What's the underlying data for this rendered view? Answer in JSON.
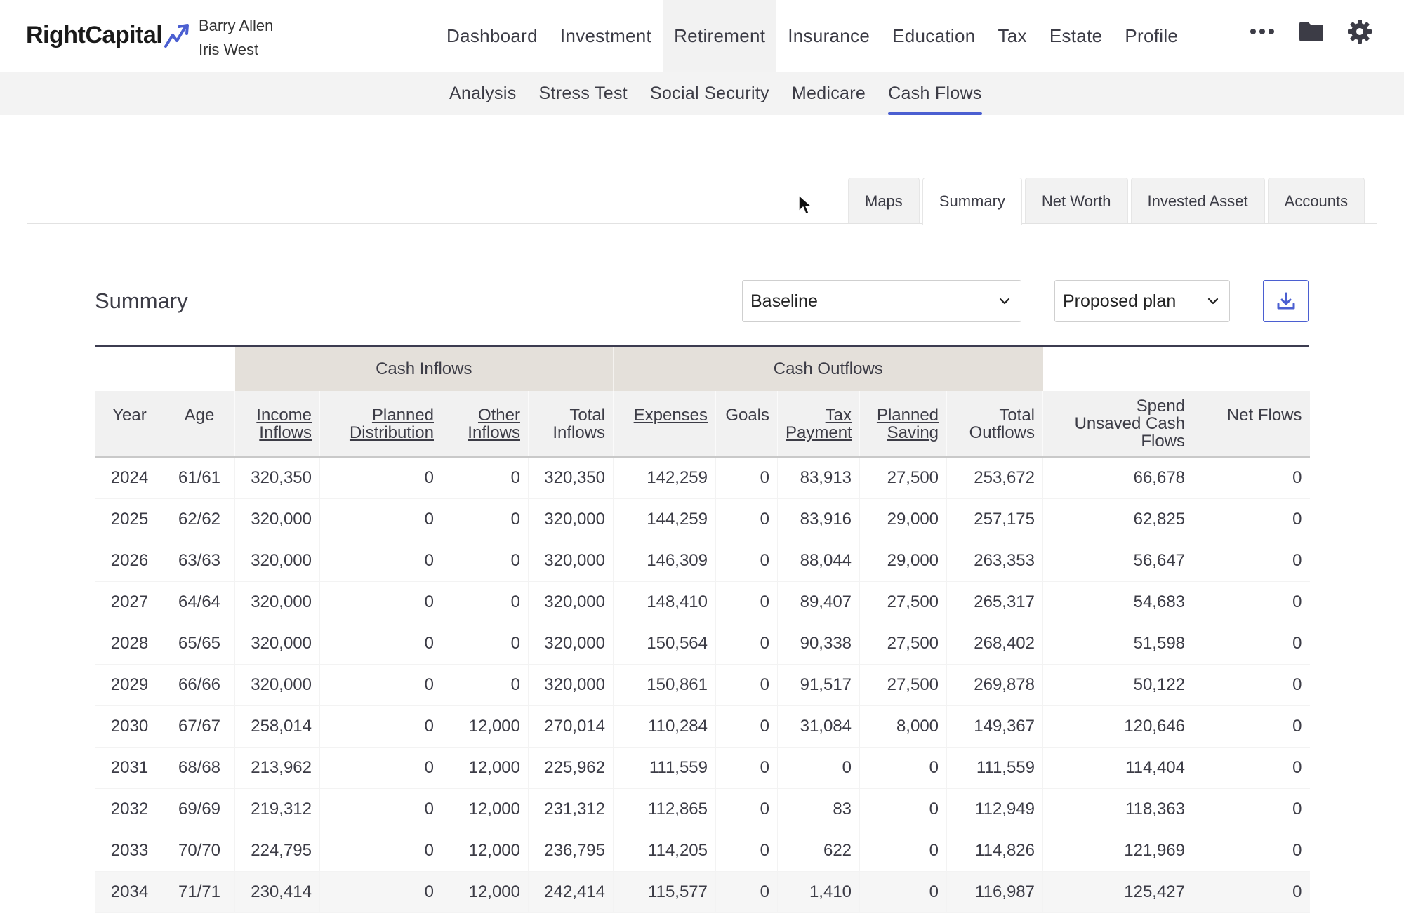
{
  "brand": {
    "name": "RightCapital",
    "accent": "#4b5fd1"
  },
  "client": {
    "line1": "Barry Allen",
    "line2": "Iris West"
  },
  "main_nav": [
    {
      "label": "Dashboard",
      "active": false
    },
    {
      "label": "Investment",
      "active": false
    },
    {
      "label": "Retirement",
      "active": true
    },
    {
      "label": "Insurance",
      "active": false
    },
    {
      "label": "Education",
      "active": false
    },
    {
      "label": "Tax",
      "active": false
    },
    {
      "label": "Estate",
      "active": false
    },
    {
      "label": "Profile",
      "active": false
    }
  ],
  "nav_icons": [
    "more-icon",
    "folder-icon",
    "gear-icon"
  ],
  "sub_nav": [
    {
      "label": "Analysis",
      "active": false
    },
    {
      "label": "Stress Test",
      "active": false
    },
    {
      "label": "Social Security",
      "active": false
    },
    {
      "label": "Medicare",
      "active": false
    },
    {
      "label": "Cash Flows",
      "active": true
    }
  ],
  "view_tabs": [
    {
      "label": "Maps",
      "active": false
    },
    {
      "label": "Summary",
      "active": true
    },
    {
      "label": "Net Worth",
      "active": false
    },
    {
      "label": "Invested Asset",
      "active": false
    },
    {
      "label": "Accounts",
      "active": false
    }
  ],
  "panel": {
    "title": "Summary",
    "scenario_select": "Baseline",
    "plan_select": "Proposed plan",
    "download_icon": "download-icon"
  },
  "table": {
    "groups": {
      "inflows": "Cash Inflows",
      "outflows": "Cash Outflows"
    },
    "columns": [
      {
        "l1": "Year",
        "l2": "",
        "l3": "",
        "underline": false
      },
      {
        "l1": "Age",
        "l2": "",
        "l3": "",
        "underline": false
      },
      {
        "l1": "Income",
        "l2": "Inflows",
        "l3": "",
        "underline": true
      },
      {
        "l1": "Planned",
        "l2": "Distribution",
        "l3": "",
        "underline": true
      },
      {
        "l1": "Other",
        "l2": "Inflows",
        "l3": "",
        "underline": true
      },
      {
        "l1": "Total",
        "l2": "Inflows",
        "l3": "",
        "underline": false
      },
      {
        "l1": "Expenses",
        "l2": "",
        "l3": "",
        "underline": true
      },
      {
        "l1": "Goals",
        "l2": "",
        "l3": "",
        "underline": false
      },
      {
        "l1": "Tax",
        "l2": "Payment",
        "l3": "",
        "underline": true
      },
      {
        "l1": "Planned",
        "l2": "Saving",
        "l3": "",
        "underline": true
      },
      {
        "l1": "Total",
        "l2": "Outflows",
        "l3": "",
        "underline": false
      },
      {
        "l1": "Spend",
        "l2": "Unsaved Cash",
        "l3": "Flows",
        "underline": false
      },
      {
        "l1": "Net Flows",
        "l2": "",
        "l3": "",
        "underline": false
      }
    ],
    "rows": [
      [
        "2024",
        "61/61",
        "320,350",
        "0",
        "0",
        "320,350",
        "142,259",
        "0",
        "83,913",
        "27,500",
        "253,672",
        "66,678",
        "0"
      ],
      [
        "2025",
        "62/62",
        "320,000",
        "0",
        "0",
        "320,000",
        "144,259",
        "0",
        "83,916",
        "29,000",
        "257,175",
        "62,825",
        "0"
      ],
      [
        "2026",
        "63/63",
        "320,000",
        "0",
        "0",
        "320,000",
        "146,309",
        "0",
        "88,044",
        "29,000",
        "263,353",
        "56,647",
        "0"
      ],
      [
        "2027",
        "64/64",
        "320,000",
        "0",
        "0",
        "320,000",
        "148,410",
        "0",
        "89,407",
        "27,500",
        "265,317",
        "54,683",
        "0"
      ],
      [
        "2028",
        "65/65",
        "320,000",
        "0",
        "0",
        "320,000",
        "150,564",
        "0",
        "90,338",
        "27,500",
        "268,402",
        "51,598",
        "0"
      ],
      [
        "2029",
        "66/66",
        "320,000",
        "0",
        "0",
        "320,000",
        "150,861",
        "0",
        "91,517",
        "27,500",
        "269,878",
        "50,122",
        "0"
      ],
      [
        "2030",
        "67/67",
        "258,014",
        "0",
        "12,000",
        "270,014",
        "110,284",
        "0",
        "31,084",
        "8,000",
        "149,367",
        "120,646",
        "0"
      ],
      [
        "2031",
        "68/68",
        "213,962",
        "0",
        "12,000",
        "225,962",
        "111,559",
        "0",
        "0",
        "0",
        "111,559",
        "114,404",
        "0"
      ],
      [
        "2032",
        "69/69",
        "219,312",
        "0",
        "12,000",
        "231,312",
        "112,865",
        "0",
        "83",
        "0",
        "112,949",
        "118,363",
        "0"
      ],
      [
        "2033",
        "70/70",
        "224,795",
        "0",
        "12,000",
        "236,795",
        "114,205",
        "0",
        "622",
        "0",
        "114,826",
        "121,969",
        "0"
      ],
      [
        "2034",
        "71/71",
        "230,414",
        "0",
        "12,000",
        "242,414",
        "115,577",
        "0",
        "1,410",
        "0",
        "116,987",
        "125,427",
        "0"
      ]
    ]
  }
}
